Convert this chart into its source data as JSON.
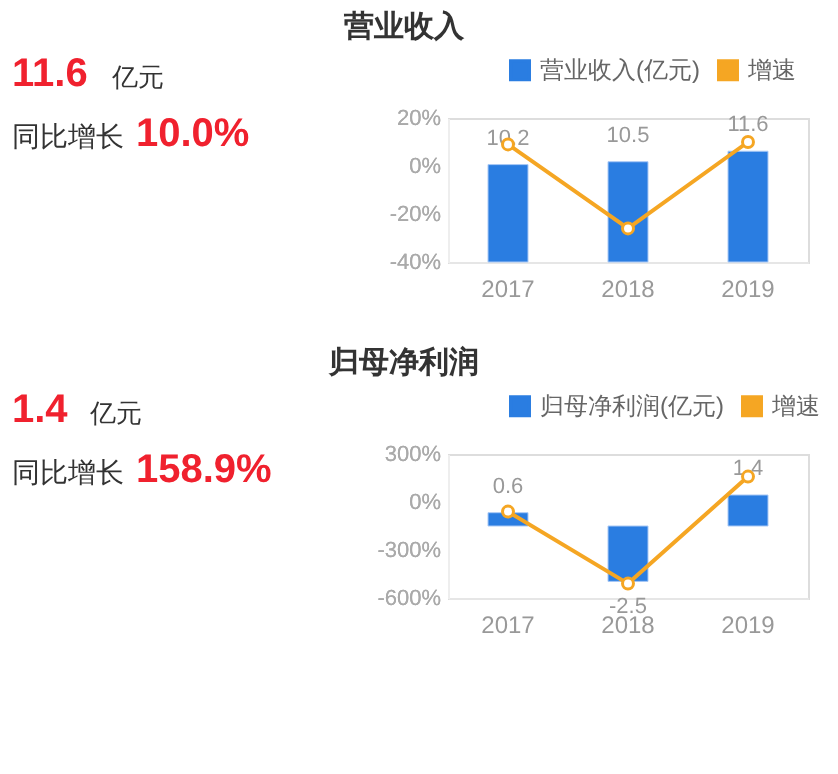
{
  "chart_data": [
    {
      "type": "bar",
      "title": "营业收入",
      "categories": [
        "2017",
        "2018",
        "2019"
      ],
      "series": [
        {
          "name": "营业收入(亿元)",
          "axis": "y2",
          "color": "#2a7de1",
          "values": [
            10.2,
            10.5,
            11.6
          ],
          "value_labels": [
            "10.2",
            "10.5",
            "11.6"
          ]
        },
        {
          "name": "增速",
          "type": "line",
          "color": "#f5a623",
          "marker": "circle",
          "values": [
            9,
            -26,
            10.0
          ]
        }
      ],
      "ylim": [
        -40,
        20
      ],
      "yticks": [
        {
          "value": -40,
          "label": "-40%"
        },
        {
          "value": -20,
          "label": "-20%"
        },
        {
          "value": 0,
          "label": "0%"
        },
        {
          "value": 20,
          "label": "20%"
        }
      ],
      "tick_labels": "xy",
      "legend": "top right",
      "grid": false,
      "annotations": [
        "11.6",
        "亿元",
        "同比增长",
        "10.0%"
      ]
    },
    {
      "type": "bar",
      "title": "归母净利润",
      "categories": [
        "2017",
        "2018",
        "2019"
      ],
      "series": [
        {
          "name": "归母净利润(亿元)",
          "axis": "y2",
          "color": "#2a7de1",
          "values": [
            0.6,
            -2.5,
            1.4
          ],
          "value_labels": [
            "0.6",
            "-2.5",
            "1.4"
          ]
        },
        {
          "name": "增速",
          "type": "line",
          "color": "#f5a623",
          "marker": "circle",
          "values": [
            -60,
            -510,
            158.9
          ]
        }
      ],
      "ylim": [
        -600,
        300
      ],
      "yticks": [
        {
          "value": -600,
          "label": "-600%"
        },
        {
          "value": -300,
          "label": "-300%"
        },
        {
          "value": 0,
          "label": "0%"
        },
        {
          "value": 300,
          "label": "300%"
        }
      ],
      "tick_labels": "xy",
      "legend": "top right",
      "grid": false,
      "annotations": [
        "1.4",
        "亿元",
        "同比增长",
        "158.9%"
      ]
    }
  ]
}
